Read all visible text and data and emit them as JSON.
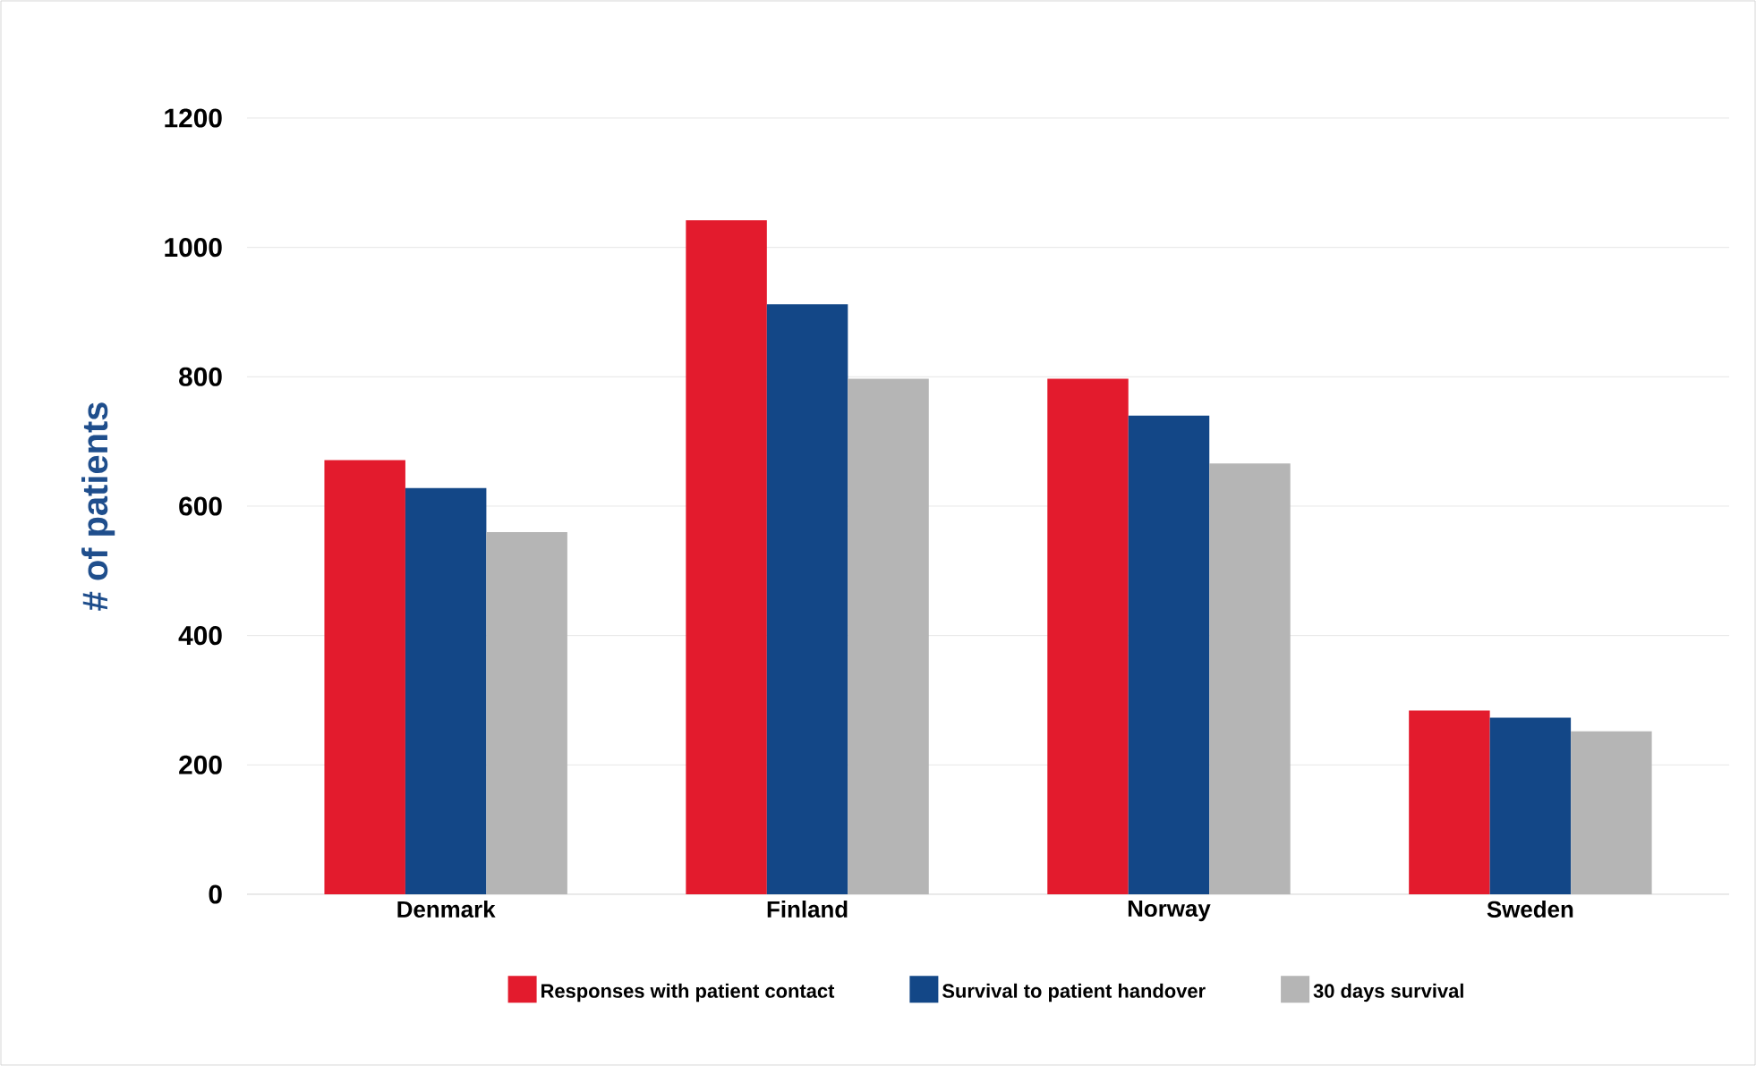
{
  "chart_data": {
    "type": "bar",
    "ylabel": "# of patients",
    "categories": [
      "Denmark",
      "Finland",
      "Norway",
      "Sweden"
    ],
    "series": [
      {
        "name": "Responses with patient contact",
        "color": "#e31b2d",
        "values": [
          671,
          1042,
          797,
          284
        ]
      },
      {
        "name": "Survival to patient handover",
        "color": "#134787",
        "values": [
          628,
          912,
          740,
          273
        ]
      },
      {
        "name": "30 days survival",
        "color": "#b5b5b5",
        "values": [
          560,
          797,
          666,
          252
        ]
      }
    ],
    "ylim": [
      0,
      1200
    ],
    "yticks": [
      0,
      200,
      400,
      600,
      800,
      1000,
      1200
    ],
    "grid": "y",
    "legend": "bottom"
  }
}
